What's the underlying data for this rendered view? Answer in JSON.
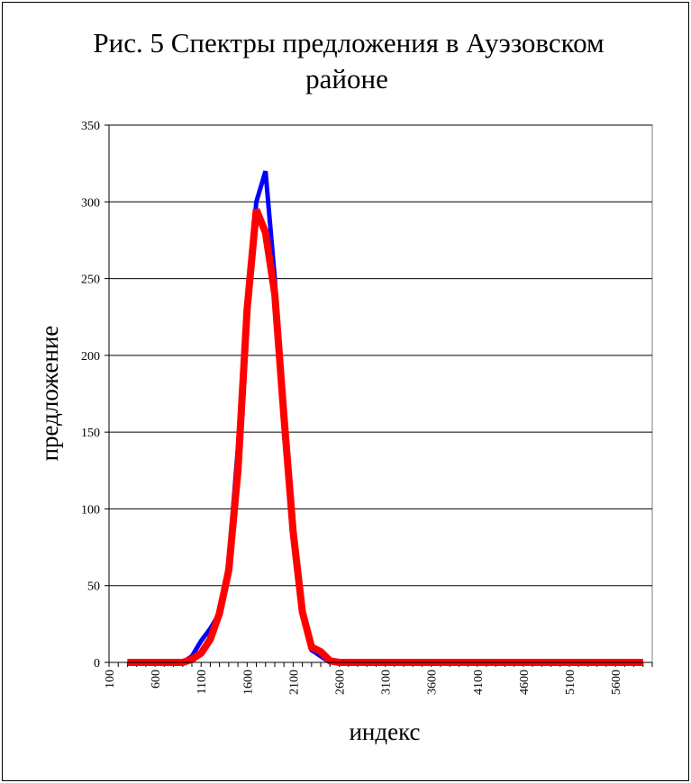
{
  "chart_data": {
    "type": "line",
    "title_line1": "Рис. 5 Спектры предложения в Ауэзовском",
    "title_line2": "районе",
    "xlabel": "индекс",
    "ylabel": "предложение",
    "ylim": [
      0,
      350
    ],
    "yticks": [
      0,
      50,
      100,
      150,
      200,
      250,
      300,
      350
    ],
    "xtick_labels": [
      "100",
      "600",
      "1100",
      "1600",
      "2100",
      "2600",
      "3100",
      "3600",
      "4100",
      "4600",
      "5100",
      "5600"
    ],
    "grid": "horizontal",
    "legend": "none",
    "x": [
      300,
      400,
      500,
      600,
      700,
      800,
      900,
      1000,
      1100,
      1200,
      1300,
      1400,
      1500,
      1600,
      1700,
      1800,
      1900,
      2000,
      2100,
      2200,
      2300,
      2400,
      2500,
      2600,
      2700,
      2800,
      2900,
      3000,
      3100,
      3200,
      3300,
      3400,
      3500,
      3600,
      3700,
      3800,
      3900,
      4000,
      4100,
      4200,
      4300,
      4400,
      4500,
      4600,
      4700,
      4800,
      4900,
      5000,
      5100,
      5200,
      5300,
      5400,
      5500,
      5600,
      5700,
      5800,
      5900
    ],
    "series": [
      {
        "color": "#0000ff",
        "values": [
          0,
          0,
          0,
          0,
          0,
          0,
          0,
          4,
          14,
          22,
          32,
          65,
          140,
          230,
          300,
          320,
          250,
          150,
          80,
          35,
          8,
          4,
          0,
          0,
          0,
          0,
          0,
          0,
          0,
          0,
          0,
          0,
          0,
          0,
          0,
          0,
          0,
          0,
          0,
          0,
          0,
          0,
          0,
          0,
          0,
          0,
          0,
          0,
          0,
          0,
          0,
          0,
          0,
          0,
          0,
          0,
          0
        ]
      },
      {
        "color": "#ff0000",
        "values": [
          0,
          0,
          0,
          0,
          0,
          0,
          0,
          2,
          6,
          15,
          32,
          60,
          125,
          230,
          295,
          280,
          240,
          160,
          85,
          33,
          10,
          7,
          1,
          0,
          0,
          0,
          0,
          0,
          0,
          0,
          0,
          0,
          0,
          0,
          0,
          0,
          0,
          0,
          0,
          0,
          0,
          0,
          0,
          0,
          0,
          0,
          0,
          0,
          0,
          0,
          0,
          0,
          0,
          0,
          0,
          0,
          0
        ]
      }
    ]
  }
}
